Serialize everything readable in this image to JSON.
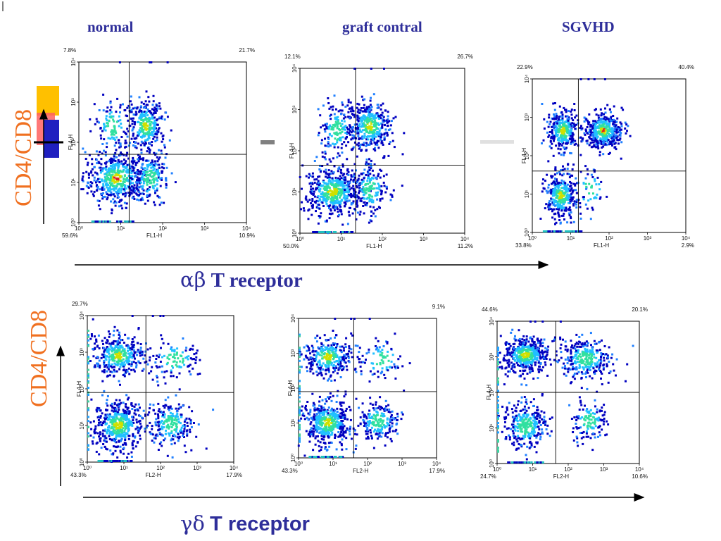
{
  "page": {
    "column_titles": [
      "normal",
      "graft contral",
      "SGVHD"
    ],
    "top_x_title": {
      "greek": "αβ",
      "text": "T receptor"
    },
    "bottom_x_title": {
      "greek": "γδ",
      "text": "T receptor"
    },
    "top_y_title": "CD4/CD8",
    "bottom_y_title": "CD4/CD8"
  },
  "colors": {
    "title": "#2e2e9a",
    "y_title": "#f07020",
    "density_low": "#0000c0",
    "density_mid": "#20c0ff",
    "density_high": "#e02020",
    "legend_top": "#ffc000",
    "legend_mid": "#ff6060",
    "legend_bottom": "#2020c0"
  },
  "chart_data": [
    {
      "type": "scatter",
      "title": "normal",
      "xlabel": "FL1-H",
      "ylabel": "FL4-H",
      "xlim": [
        0,
        4
      ],
      "ylim": [
        0,
        4
      ],
      "log_scale": true,
      "grid": false,
      "gate": {
        "x": 1.2,
        "y": 1.7
      },
      "x_ticks": [
        "10⁰",
        "10¹",
        "10²",
        "10³",
        "10⁴"
      ],
      "y_ticks": [
        "10⁰",
        "10¹",
        "10²",
        "10³",
        "10⁴"
      ],
      "quadrants": {
        "ul": "7.8%",
        "ur": "21.7%",
        "ll": "59.6%",
        "lr": "10.9%"
      },
      "clusters": [
        {
          "cx": 0.9,
          "cy": 1.1,
          "sx": 0.38,
          "sy": 0.33,
          "n": 520,
          "peak": "high"
        },
        {
          "cx": 1.7,
          "cy": 1.1,
          "sx": 0.22,
          "sy": 0.33,
          "n": 200,
          "peak": "low"
        },
        {
          "cx": 1.6,
          "cy": 2.4,
          "sx": 0.22,
          "sy": 0.33,
          "n": 320,
          "peak": "mid"
        },
        {
          "cx": 0.8,
          "cy": 2.4,
          "sx": 0.2,
          "sy": 0.35,
          "n": 120,
          "peak": "low"
        }
      ]
    },
    {
      "type": "scatter",
      "title": "graft contral",
      "xlabel": "FL1-H",
      "ylabel": "FL4-H",
      "xlim": [
        0,
        4
      ],
      "ylim": [
        0,
        4
      ],
      "log_scale": true,
      "grid": false,
      "gate": {
        "x": 1.35,
        "y": 1.65
      },
      "x_ticks": [
        "10⁰",
        "10¹",
        "10²",
        "10³",
        "10⁴"
      ],
      "y_ticks": [
        "10⁰",
        "10¹",
        "10²",
        "10³",
        "10⁴"
      ],
      "quadrants": {
        "ul": "12.1%",
        "ur": "26.7%",
        "ll": "50.0%",
        "lr": "11.2%"
      },
      "clusters": [
        {
          "cx": 0.8,
          "cy": 1.0,
          "sx": 0.35,
          "sy": 0.3,
          "n": 520,
          "peak": "mid"
        },
        {
          "cx": 1.7,
          "cy": 1.05,
          "sx": 0.22,
          "sy": 0.3,
          "n": 180,
          "peak": "low"
        },
        {
          "cx": 1.7,
          "cy": 2.6,
          "sx": 0.25,
          "sy": 0.3,
          "n": 380,
          "peak": "mid"
        },
        {
          "cx": 0.9,
          "cy": 2.5,
          "sx": 0.2,
          "sy": 0.35,
          "n": 160,
          "peak": "low"
        }
      ]
    },
    {
      "type": "scatter",
      "title": "SGVHD",
      "xlabel": "FL1-H",
      "ylabel": "FL4-H",
      "xlim": [
        0,
        4
      ],
      "ylim": [
        0,
        4
      ],
      "log_scale": true,
      "grid": false,
      "gate": {
        "x": 1.2,
        "y": 1.6
      },
      "x_ticks": [
        "10⁰",
        "10¹",
        "10²",
        "10³",
        "10⁴"
      ],
      "y_ticks": [
        "10⁰",
        "10¹",
        "10²",
        "10³",
        "10⁴"
      ],
      "quadrants": {
        "ul": "22.9%",
        "ur": "40.4%",
        "ll": "33.8%",
        "lr": "2.9%"
      },
      "clusters": [
        {
          "cx": 0.75,
          "cy": 0.95,
          "sx": 0.22,
          "sy": 0.3,
          "n": 340,
          "peak": "mid"
        },
        {
          "cx": 0.8,
          "cy": 2.65,
          "sx": 0.2,
          "sy": 0.28,
          "n": 300,
          "peak": "mid"
        },
        {
          "cx": 1.85,
          "cy": 2.65,
          "sx": 0.25,
          "sy": 0.25,
          "n": 420,
          "peak": "high"
        },
        {
          "cx": 1.5,
          "cy": 1.1,
          "sx": 0.25,
          "sy": 0.3,
          "n": 50,
          "peak": "low"
        }
      ]
    },
    {
      "type": "scatter",
      "title": "normal",
      "xlabel": "FL2-H",
      "ylabel": "FL4-H",
      "xlim": [
        0,
        4
      ],
      "ylim": [
        0,
        4
      ],
      "log_scale": true,
      "grid": false,
      "gate": {
        "x": 1.6,
        "y": 1.9
      },
      "x_ticks": [
        "10⁰",
        "10¹",
        "10²",
        "10³",
        "10⁴"
      ],
      "y_ticks": [
        "10⁰",
        "10¹",
        "10²",
        "10³",
        "10⁴"
      ],
      "quadrants": {
        "ul": "29.7%",
        "ur": "",
        "ll": "43.3%",
        "lr": "17.9%"
      },
      "clusters": [
        {
          "cx": 0.85,
          "cy": 1.0,
          "sx": 0.35,
          "sy": 0.33,
          "n": 480,
          "peak": "mid"
        },
        {
          "cx": 0.85,
          "cy": 2.9,
          "sx": 0.35,
          "sy": 0.28,
          "n": 360,
          "peak": "mid"
        },
        {
          "cx": 2.3,
          "cy": 1.05,
          "sx": 0.3,
          "sy": 0.3,
          "n": 220,
          "peak": "low"
        },
        {
          "cx": 2.4,
          "cy": 2.8,
          "sx": 0.35,
          "sy": 0.3,
          "n": 110,
          "peak": "low"
        }
      ]
    },
    {
      "type": "scatter",
      "title": "graft contral",
      "xlabel": "FL2-H",
      "ylabel": "FL4-H",
      "xlim": [
        0,
        4
      ],
      "ylim": [
        0,
        4
      ],
      "log_scale": true,
      "grid": false,
      "gate": {
        "x": 1.6,
        "y": 1.9
      },
      "x_ticks": [
        "10⁰",
        "10¹",
        "10²",
        "10³",
        "10⁴"
      ],
      "y_ticks": [
        "10⁰",
        "10¹",
        "10²",
        "10³",
        "10⁴"
      ],
      "quadrants": {
        "ul": "",
        "ur": "9.1%",
        "ll": "43.3%",
        "lr": "17.9%"
      },
      "clusters": [
        {
          "cx": 0.85,
          "cy": 1.0,
          "sx": 0.35,
          "sy": 0.33,
          "n": 460,
          "peak": "mid"
        },
        {
          "cx": 0.85,
          "cy": 2.9,
          "sx": 0.35,
          "sy": 0.28,
          "n": 300,
          "peak": "mid"
        },
        {
          "cx": 2.3,
          "cy": 1.05,
          "sx": 0.3,
          "sy": 0.3,
          "n": 200,
          "peak": "low"
        },
        {
          "cx": 2.4,
          "cy": 2.8,
          "sx": 0.35,
          "sy": 0.3,
          "n": 90,
          "peak": "low"
        }
      ]
    },
    {
      "type": "scatter",
      "title": "SGVHD",
      "xlabel": "FL2-H",
      "ylabel": "FL4-H",
      "xlim": [
        0,
        4
      ],
      "ylim": [
        0,
        4
      ],
      "log_scale": true,
      "grid": false,
      "gate": {
        "x": 1.65,
        "y": 2.0
      },
      "x_ticks": [
        "10⁰",
        "10¹",
        "10²",
        "10³",
        "10⁴"
      ],
      "y_ticks": [
        "10⁰",
        "10¹",
        "10²",
        "10³",
        "10⁴"
      ],
      "quadrants": {
        "ul": "44.6%",
        "ur": "20.1%",
        "ll": "24.7%",
        "lr": "10.6%"
      },
      "clusters": [
        {
          "cx": 0.8,
          "cy": 3.05,
          "sx": 0.33,
          "sy": 0.25,
          "n": 460,
          "peak": "mid"
        },
        {
          "cx": 0.8,
          "cy": 1.05,
          "sx": 0.3,
          "sy": 0.33,
          "n": 300,
          "peak": "low"
        },
        {
          "cx": 2.5,
          "cy": 2.95,
          "sx": 0.35,
          "sy": 0.28,
          "n": 300,
          "peak": "low"
        },
        {
          "cx": 2.6,
          "cy": 1.2,
          "sx": 0.25,
          "sy": 0.3,
          "n": 130,
          "peak": "low"
        }
      ]
    }
  ]
}
